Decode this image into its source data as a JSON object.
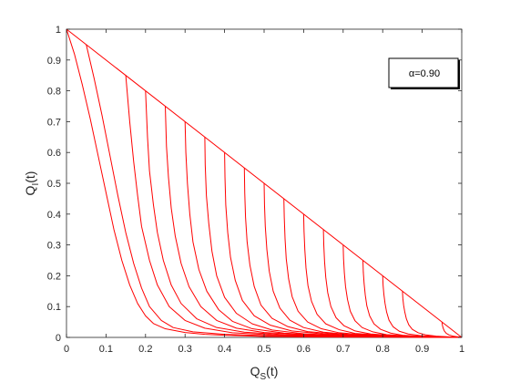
{
  "chart_data": {
    "type": "line",
    "xlabel": {
      "base": "Q",
      "sub": "S",
      "suffix": "(t)"
    },
    "ylabel": {
      "base": "Q",
      "sub": "I",
      "suffix": "(t)"
    },
    "xlim": [
      0,
      1
    ],
    "ylim": [
      0,
      1
    ],
    "xticks": [
      "0",
      "0.1",
      "0.2",
      "0.3",
      "0.4",
      "0.5",
      "0.6",
      "0.7",
      "0.8",
      "0.9",
      "1"
    ],
    "yticks": [
      "0",
      "0.1",
      "0.2",
      "0.3",
      "0.4",
      "0.5",
      "0.6",
      "0.7",
      "0.8",
      "0.9",
      "1"
    ],
    "grid": false,
    "annotation": {
      "text": "α=0.90",
      "position": "top-right"
    },
    "line_color": "#ff0000",
    "series": [
      {
        "points": [
          [
            0,
            1
          ],
          [
            1,
            0
          ]
        ]
      },
      {
        "points": [
          [
            0.0,
            1.0
          ],
          [
            0.02,
            0.92
          ],
          [
            0.04,
            0.82
          ],
          [
            0.06,
            0.71
          ],
          [
            0.08,
            0.59
          ],
          [
            0.1,
            0.47
          ],
          [
            0.12,
            0.35
          ],
          [
            0.14,
            0.25
          ],
          [
            0.16,
            0.17
          ],
          [
            0.18,
            0.11
          ],
          [
            0.2,
            0.07
          ],
          [
            0.22,
            0.045
          ],
          [
            0.25,
            0.028
          ],
          [
            0.3,
            0.016
          ],
          [
            0.35,
            0.01
          ],
          [
            0.4,
            0.007
          ],
          [
            0.45,
            0.005
          ],
          [
            0.5,
            0.003
          ],
          [
            0.6,
            0.002
          ],
          [
            0.7,
            0.001
          ],
          [
            0.8,
            0.001
          ],
          [
            1.0,
            0.0
          ]
        ]
      },
      {
        "points": [
          [
            0.05,
            0.95
          ],
          [
            0.07,
            0.84
          ],
          [
            0.09,
            0.72
          ],
          [
            0.11,
            0.59
          ],
          [
            0.13,
            0.46
          ],
          [
            0.15,
            0.34
          ],
          [
            0.17,
            0.24
          ],
          [
            0.19,
            0.16
          ],
          [
            0.21,
            0.1
          ],
          [
            0.24,
            0.055
          ],
          [
            0.27,
            0.032
          ],
          [
            0.32,
            0.018
          ],
          [
            0.4,
            0.01
          ],
          [
            0.5,
            0.006
          ],
          [
            0.6,
            0.004
          ],
          [
            0.75,
            0.002
          ],
          [
            1.0,
            0.0
          ]
        ]
      },
      {
        "points": [
          [
            0.15,
            0.85
          ],
          [
            0.16,
            0.7
          ],
          [
            0.17,
            0.57
          ],
          [
            0.18,
            0.46
          ],
          [
            0.19,
            0.36
          ],
          [
            0.21,
            0.25
          ],
          [
            0.23,
            0.17
          ],
          [
            0.26,
            0.1
          ],
          [
            0.3,
            0.055
          ],
          [
            0.35,
            0.03
          ],
          [
            0.42,
            0.015
          ],
          [
            0.52,
            0.008
          ],
          [
            0.65,
            0.004
          ],
          [
            0.8,
            0.002
          ],
          [
            1.0,
            0.0
          ]
        ]
      },
      {
        "points": [
          [
            0.2,
            0.8
          ],
          [
            0.205,
            0.65
          ],
          [
            0.21,
            0.54
          ],
          [
            0.22,
            0.43
          ],
          [
            0.23,
            0.34
          ],
          [
            0.245,
            0.25
          ],
          [
            0.265,
            0.17
          ],
          [
            0.29,
            0.11
          ],
          [
            0.33,
            0.06
          ],
          [
            0.38,
            0.032
          ],
          [
            0.45,
            0.017
          ],
          [
            0.55,
            0.009
          ],
          [
            0.68,
            0.005
          ],
          [
            0.85,
            0.002
          ],
          [
            1.0,
            0.0
          ]
        ]
      },
      {
        "points": [
          [
            0.25,
            0.75
          ],
          [
            0.253,
            0.62
          ],
          [
            0.258,
            0.52
          ],
          [
            0.265,
            0.42
          ],
          [
            0.275,
            0.33
          ],
          [
            0.29,
            0.24
          ],
          [
            0.31,
            0.165
          ],
          [
            0.34,
            0.1
          ],
          [
            0.38,
            0.055
          ],
          [
            0.43,
            0.03
          ],
          [
            0.5,
            0.016
          ],
          [
            0.6,
            0.009
          ],
          [
            0.75,
            0.004
          ],
          [
            1.0,
            0.0
          ]
        ]
      },
      {
        "points": [
          [
            0.3,
            0.7
          ],
          [
            0.302,
            0.6
          ],
          [
            0.306,
            0.5
          ],
          [
            0.312,
            0.4
          ],
          [
            0.32,
            0.31
          ],
          [
            0.335,
            0.22
          ],
          [
            0.355,
            0.15
          ],
          [
            0.385,
            0.09
          ],
          [
            0.42,
            0.052
          ],
          [
            0.47,
            0.028
          ],
          [
            0.55,
            0.014
          ],
          [
            0.65,
            0.007
          ],
          [
            0.8,
            0.003
          ],
          [
            1.0,
            0.0
          ]
        ]
      },
      {
        "points": [
          [
            0.35,
            0.65
          ],
          [
            0.351,
            0.56
          ],
          [
            0.354,
            0.46
          ],
          [
            0.36,
            0.37
          ],
          [
            0.368,
            0.28
          ],
          [
            0.38,
            0.2
          ],
          [
            0.4,
            0.13
          ],
          [
            0.43,
            0.078
          ],
          [
            0.47,
            0.044
          ],
          [
            0.52,
            0.024
          ],
          [
            0.6,
            0.012
          ],
          [
            0.7,
            0.006
          ],
          [
            0.85,
            0.002
          ],
          [
            1.0,
            0.0
          ]
        ]
      },
      {
        "points": [
          [
            0.4,
            0.6
          ],
          [
            0.401,
            0.52
          ],
          [
            0.403,
            0.43
          ],
          [
            0.408,
            0.34
          ],
          [
            0.415,
            0.26
          ],
          [
            0.427,
            0.185
          ],
          [
            0.445,
            0.12
          ],
          [
            0.475,
            0.07
          ],
          [
            0.515,
            0.04
          ],
          [
            0.57,
            0.021
          ],
          [
            0.65,
            0.011
          ],
          [
            0.75,
            0.005
          ],
          [
            0.9,
            0.002
          ],
          [
            1.0,
            0.0
          ]
        ]
      },
      {
        "points": [
          [
            0.45,
            0.55
          ],
          [
            0.451,
            0.47
          ],
          [
            0.453,
            0.39
          ],
          [
            0.457,
            0.31
          ],
          [
            0.464,
            0.235
          ],
          [
            0.475,
            0.165
          ],
          [
            0.492,
            0.105
          ],
          [
            0.52,
            0.062
          ],
          [
            0.56,
            0.035
          ],
          [
            0.61,
            0.019
          ],
          [
            0.69,
            0.01
          ],
          [
            0.8,
            0.004
          ],
          [
            1.0,
            0.0
          ]
        ]
      },
      {
        "points": [
          [
            0.5,
            0.5
          ],
          [
            0.501,
            0.43
          ],
          [
            0.503,
            0.36
          ],
          [
            0.507,
            0.285
          ],
          [
            0.513,
            0.215
          ],
          [
            0.523,
            0.15
          ],
          [
            0.54,
            0.095
          ],
          [
            0.565,
            0.056
          ],
          [
            0.6,
            0.032
          ],
          [
            0.65,
            0.017
          ],
          [
            0.72,
            0.009
          ],
          [
            0.82,
            0.004
          ],
          [
            1.0,
            0.0
          ]
        ]
      },
      {
        "points": [
          [
            0.55,
            0.45
          ],
          [
            0.551,
            0.39
          ],
          [
            0.553,
            0.32
          ],
          [
            0.556,
            0.255
          ],
          [
            0.562,
            0.19
          ],
          [
            0.571,
            0.132
          ],
          [
            0.586,
            0.085
          ],
          [
            0.61,
            0.05
          ],
          [
            0.645,
            0.028
          ],
          [
            0.69,
            0.015
          ],
          [
            0.76,
            0.008
          ],
          [
            0.86,
            0.003
          ],
          [
            1.0,
            0.0
          ]
        ]
      },
      {
        "points": [
          [
            0.6,
            0.4
          ],
          [
            0.601,
            0.345
          ],
          [
            0.603,
            0.285
          ],
          [
            0.606,
            0.225
          ],
          [
            0.611,
            0.168
          ],
          [
            0.62,
            0.117
          ],
          [
            0.634,
            0.075
          ],
          [
            0.656,
            0.044
          ],
          [
            0.69,
            0.025
          ],
          [
            0.73,
            0.013
          ],
          [
            0.8,
            0.007
          ],
          [
            0.88,
            0.003
          ],
          [
            1.0,
            0.0
          ]
        ]
      },
      {
        "points": [
          [
            0.65,
            0.35
          ],
          [
            0.651,
            0.3
          ],
          [
            0.653,
            0.245
          ],
          [
            0.656,
            0.195
          ],
          [
            0.661,
            0.145
          ],
          [
            0.669,
            0.1
          ],
          [
            0.682,
            0.064
          ],
          [
            0.702,
            0.038
          ],
          [
            0.73,
            0.021
          ],
          [
            0.77,
            0.011
          ],
          [
            0.83,
            0.006
          ],
          [
            0.9,
            0.002
          ],
          [
            1.0,
            0.0
          ]
        ]
      },
      {
        "points": [
          [
            0.7,
            0.3
          ],
          [
            0.701,
            0.255
          ],
          [
            0.703,
            0.21
          ],
          [
            0.706,
            0.165
          ],
          [
            0.711,
            0.123
          ],
          [
            0.718,
            0.085
          ],
          [
            0.73,
            0.054
          ],
          [
            0.748,
            0.032
          ],
          [
            0.775,
            0.018
          ],
          [
            0.81,
            0.009
          ],
          [
            0.86,
            0.005
          ],
          [
            0.92,
            0.002
          ],
          [
            1.0,
            0.0
          ]
        ]
      },
      {
        "points": [
          [
            0.75,
            0.25
          ],
          [
            0.751,
            0.212
          ],
          [
            0.753,
            0.175
          ],
          [
            0.756,
            0.137
          ],
          [
            0.76,
            0.102
          ],
          [
            0.767,
            0.07
          ],
          [
            0.778,
            0.044
          ],
          [
            0.795,
            0.026
          ],
          [
            0.82,
            0.014
          ],
          [
            0.85,
            0.007
          ],
          [
            0.89,
            0.004
          ],
          [
            0.94,
            0.002
          ],
          [
            1.0,
            0.0
          ]
        ]
      },
      {
        "points": [
          [
            0.8,
            0.2
          ],
          [
            0.801,
            0.17
          ],
          [
            0.803,
            0.14
          ],
          [
            0.806,
            0.11
          ],
          [
            0.81,
            0.082
          ],
          [
            0.816,
            0.056
          ],
          [
            0.826,
            0.035
          ],
          [
            0.842,
            0.02
          ],
          [
            0.865,
            0.011
          ],
          [
            0.895,
            0.006
          ],
          [
            0.93,
            0.003
          ],
          [
            1.0,
            0.0
          ]
        ]
      },
      {
        "points": [
          [
            0.85,
            0.15
          ],
          [
            0.851,
            0.127
          ],
          [
            0.853,
            0.104
          ],
          [
            0.856,
            0.082
          ],
          [
            0.86,
            0.06
          ],
          [
            0.866,
            0.041
          ],
          [
            0.875,
            0.026
          ],
          [
            0.89,
            0.015
          ],
          [
            0.91,
            0.008
          ],
          [
            0.935,
            0.004
          ],
          [
            0.965,
            0.002
          ],
          [
            1.0,
            0.0
          ]
        ]
      },
      {
        "points": [
          [
            0.95,
            0.05
          ],
          [
            0.951,
            0.04
          ],
          [
            0.953,
            0.03
          ],
          [
            0.956,
            0.021
          ],
          [
            0.961,
            0.013
          ],
          [
            0.968,
            0.008
          ],
          [
            0.978,
            0.004
          ],
          [
            0.99,
            0.002
          ],
          [
            1.0,
            0.0
          ]
        ]
      }
    ]
  }
}
